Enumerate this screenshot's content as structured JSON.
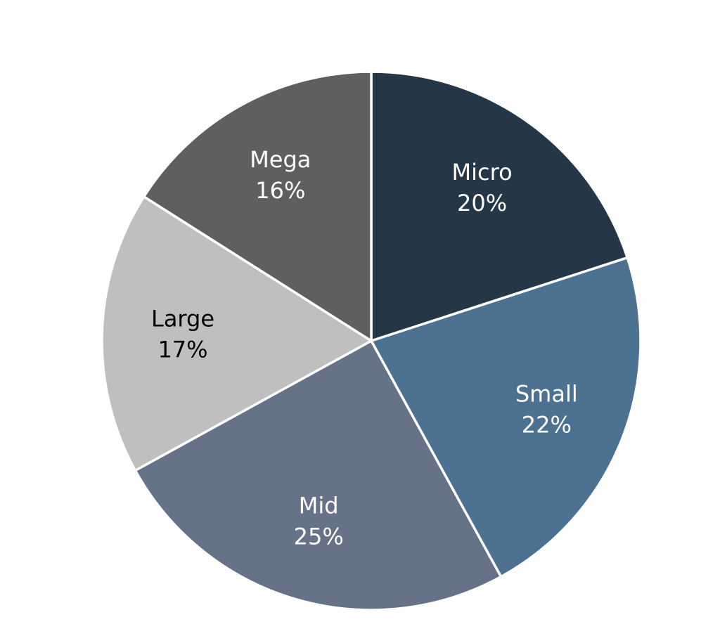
{
  "chart_data": {
    "type": "pie",
    "title": "",
    "start_angle_deg": 0,
    "direction": "clockwise",
    "legend": "none",
    "slices": [
      {
        "label": "Micro",
        "value": 20,
        "value_label": "20%",
        "color": "#253746",
        "text_color": "#ffffff"
      },
      {
        "label": "Small",
        "value": 22,
        "value_label": "22%",
        "color": "#4d7190",
        "text_color": "#ffffff"
      },
      {
        "label": "Mid",
        "value": 25,
        "value_label": "25%",
        "color": "#667287",
        "text_color": "#ffffff"
      },
      {
        "label": "Large",
        "value": 17,
        "value_label": "17%",
        "color": "#bfbfbf",
        "text_color": "#000000"
      },
      {
        "label": "Mega",
        "value": 16,
        "value_label": "16%",
        "color": "#5f5f5f",
        "text_color": "#ffffff"
      }
    ]
  }
}
